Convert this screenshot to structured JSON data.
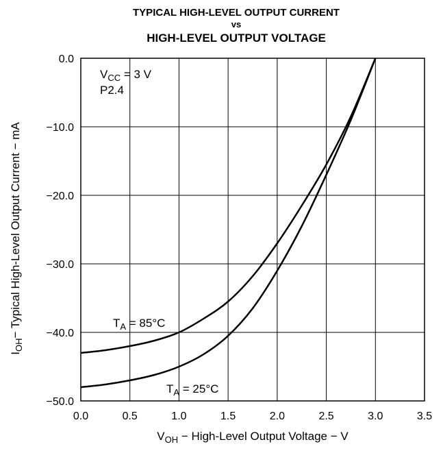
{
  "chart_data": {
    "type": "line",
    "title": [
      "TYPICAL HIGH-LEVEL OUTPUT CURRENT",
      "vs",
      "HIGH-LEVEL OUTPUT VOLTAGE"
    ],
    "xlabel": {
      "main": "V",
      "sub": "OH",
      "rest": " − High-Level Output Voltage − V"
    },
    "ylabel": {
      "main": "I",
      "sub": "OH",
      "rest": "− Typical High-Level Output Current − mA"
    },
    "xlim": [
      0.0,
      3.5
    ],
    "ylim": [
      -50.0,
      0.0
    ],
    "x_ticks": [
      "0.0",
      "0.5",
      "1.0",
      "1.5",
      "2.0",
      "2.5",
      "3.0",
      "3.5"
    ],
    "y_ticks": [
      "0.0",
      "−10.0",
      "−20.0",
      "−30.0",
      "−40.0",
      "−50.0"
    ],
    "x_tick_values": [
      0.0,
      0.5,
      1.0,
      1.5,
      2.0,
      2.5,
      3.0,
      3.5
    ],
    "y_tick_values": [
      0.0,
      -10.0,
      -20.0,
      -30.0,
      -40.0,
      -50.0
    ],
    "grid": true,
    "conditions": [
      {
        "main": "V",
        "sub": "CC",
        "rest": " = 3 V"
      },
      {
        "main": "P2.4",
        "sub": "",
        "rest": ""
      }
    ],
    "series": [
      {
        "name": "T_A = 85°C",
        "label": {
          "main": "T",
          "sub": "A",
          "rest": " = 85°C"
        },
        "x": [
          0.0,
          0.25,
          0.5,
          0.75,
          1.0,
          1.25,
          1.5,
          1.75,
          2.0,
          2.25,
          2.5,
          2.75,
          3.0
        ],
        "y": [
          -43.0,
          -42.6,
          -42.0,
          -41.2,
          -40.0,
          -38.0,
          -35.5,
          -31.8,
          -27.0,
          -21.5,
          -15.5,
          -8.5,
          0.0
        ]
      },
      {
        "name": "T_A = 25°C",
        "label": {
          "main": "T",
          "sub": "A",
          "rest": " = 25°C"
        },
        "x": [
          0.0,
          0.25,
          0.5,
          0.75,
          1.0,
          1.25,
          1.5,
          1.75,
          2.0,
          2.25,
          2.5,
          2.75,
          3.0
        ],
        "y": [
          -48.0,
          -47.6,
          -47.0,
          -46.2,
          -45.0,
          -43.2,
          -40.5,
          -36.5,
          -31.0,
          -24.5,
          -17.0,
          -9.0,
          0.0
        ]
      }
    ]
  }
}
